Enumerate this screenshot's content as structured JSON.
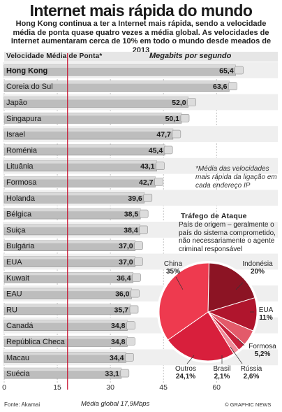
{
  "title": "Internet mais rápida do mundo",
  "subtitle": "Hong Kong continua a ter a Internet mais rápida, sendo a velocidade média de ponta quase quatro vezes a média global. As velocidades de Internet aumentaram cerca de 10% em todo o mundo desde meados de 2013",
  "header": {
    "left": "Velocidade Média de Ponta*",
    "right": "Megabits por segundo"
  },
  "note": "*Média das velocidades mais rápida da ligação em cada endereço IP",
  "attack": {
    "title": "Tráfego de Ataque",
    "subtitle": "País de origem – geralmente o país do sistema comprometido, não necessariamente o agente criminal responsável"
  },
  "footer": {
    "source": "Fonte: Akamai",
    "average_label": "Média global 17,9Mbps",
    "credit": "© GRAPHIC NEWS"
  },
  "colors": {
    "accent": "#c8102e",
    "bar": "#bdbdbd",
    "row_band": "#efefef",
    "pie_china": "#ee3a4f",
    "pie_indonesia": "#8c1424",
    "pie_eua": "#b0152d",
    "pie_formosa": "#e35a6a",
    "pie_russia": "#c6203a",
    "pie_brasil": "#f08a98",
    "pie_outros": "#d81f3c"
  },
  "chart_data": [
    {
      "type": "bar",
      "orientation": "horizontal",
      "title": "Velocidade Média de Ponta*",
      "xlabel": "Megabits por segundo",
      "xlim": [
        0,
        70
      ],
      "xticks": [
        "0",
        "15",
        "30",
        "45",
        "60"
      ],
      "reference_line": {
        "value": 17.9,
        "label": "Média global 17,9Mbps"
      },
      "categories": [
        "Hong Kong",
        "Coreia do Sul",
        "Japão",
        "Singapura",
        "Israel",
        "Roménia",
        "Lituânia",
        "Formosa",
        "Holanda",
        "Bélgica",
        "Suiça",
        "Bulgária",
        "EUA",
        "Kuwait",
        "EAU",
        "RU",
        "Canadá",
        "República Checa",
        "Macau",
        "Suécia"
      ],
      "values": [
        65.4,
        63.6,
        52.0,
        50.1,
        47.7,
        45.4,
        43.1,
        42.7,
        39.6,
        38.5,
        38.4,
        37.0,
        37.0,
        36.4,
        36.0,
        35.7,
        34.8,
        34.8,
        34.4,
        33.1
      ],
      "value_labels": [
        "65,4",
        "63,6",
        "52,0",
        "50,1",
        "47,7",
        "45,4",
        "43,1",
        "42,7",
        "39,6",
        "38,5",
        "38,4",
        "37,0",
        "37,0",
        "36,4",
        "36,0",
        "35,7",
        "34,8",
        "34,8",
        "34,4",
        "33,1"
      ]
    },
    {
      "type": "pie",
      "title": "Tráfego de Ataque",
      "slices": [
        {
          "label": "China",
          "value": 35,
          "display": "35%",
          "color_key": "pie_china"
        },
        {
          "label": "Indonésia",
          "value": 20,
          "display": "20%",
          "color_key": "pie_indonesia"
        },
        {
          "label": "EUA",
          "value": 11,
          "display": "11%",
          "color_key": "pie_eua"
        },
        {
          "label": "Formosa",
          "value": 5.2,
          "display": "5,2%",
          "color_key": "pie_formosa"
        },
        {
          "label": "Rússia",
          "value": 2.6,
          "display": "2,6%",
          "color_key": "pie_russia"
        },
        {
          "label": "Brasil",
          "value": 2.1,
          "display": "2,1%",
          "color_key": "pie_brasil"
        },
        {
          "label": "Outros",
          "value": 24.1,
          "display": "24,1%",
          "color_key": "pie_outros"
        }
      ]
    }
  ]
}
